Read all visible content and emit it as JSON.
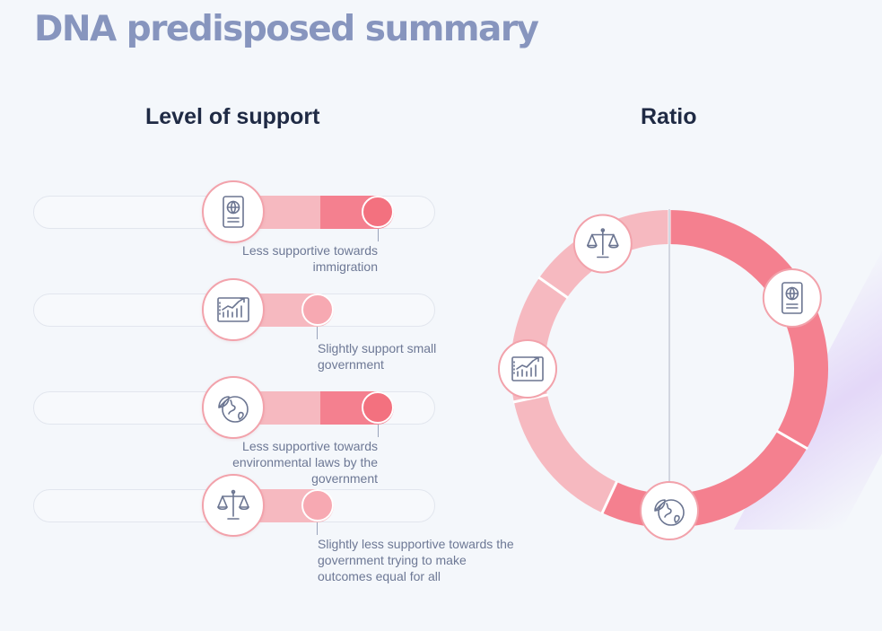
{
  "page": {
    "title": "DNA predisposed summary"
  },
  "sections": {
    "level_of_support": "Level of support",
    "ratio": "Ratio"
  },
  "support_items": [
    {
      "icon": "passport-icon",
      "level": "less supportive",
      "note": "Less supportive towards immigration"
    },
    {
      "icon": "growth-chart-icon",
      "level": "slightly supportive",
      "note": "Slightly support small government"
    },
    {
      "icon": "earth-leaf-icon",
      "level": "less supportive",
      "note": "Less supportive towards environmental laws by the government"
    },
    {
      "icon": "scales-icon",
      "level": "slightly less supportive",
      "note": "Slightly less supportive towards the government trying to make outcomes equal for all"
    }
  ],
  "ratio_ring": {
    "colors": {
      "strong": "#f4808f",
      "light": "#f6b9c0"
    },
    "icons": [
      "scales-icon",
      "passport-icon",
      "growth-chart-icon",
      "earth-leaf-icon"
    ]
  },
  "colors": {
    "title": "#8795be",
    "heading": "#1f2a44",
    "note": "#6d7895",
    "accent": "#f4808f",
    "accent_light": "#f6b9c0"
  }
}
